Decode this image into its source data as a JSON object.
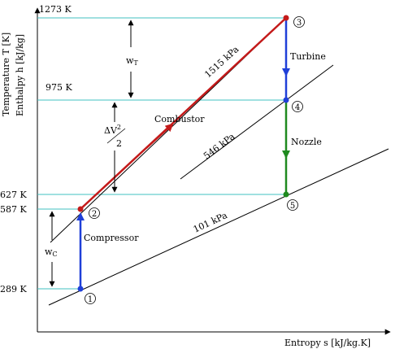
{
  "y_axis": {
    "label_line1": "Temperature T [K]",
    "label_line2": "Enthalpy h [kJ/kg]"
  },
  "x_axis": {
    "label": "Entropy s [kJ/kg.K]"
  },
  "temperature_levels": [
    "1273 K",
    "975 K",
    "627 K",
    "587 K",
    "289 K"
  ],
  "isobars": [
    {
      "label": "1515 kPa"
    },
    {
      "label": "546 kPa"
    },
    {
      "label": "101 kPa"
    }
  ],
  "states": [
    "1",
    "2",
    "3",
    "4",
    "5"
  ],
  "processes": {
    "compressor": "Compressor",
    "combustor": "Combustor",
    "turbine": "Turbine",
    "nozzle": "Nozzle"
  },
  "energy_labels": {
    "turbine_work": "w",
    "turbine_work_sub": "T",
    "kinetic_delta": "ΔV",
    "kinetic_exp": "2",
    "kinetic_den": "2",
    "compressor_work": "w",
    "compressor_work_sub": "C"
  },
  "colors": {
    "isotherm": "#40c0c0",
    "compressor": "#1f3fd8",
    "combustor": "#c41a1a",
    "turbine": "#1f3fd8",
    "nozzle": "#1f8a1f"
  }
}
